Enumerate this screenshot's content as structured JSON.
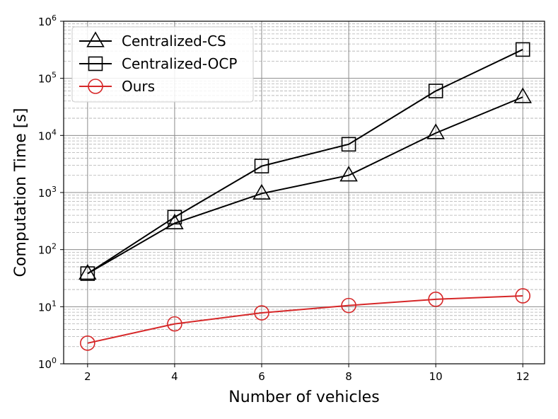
{
  "chart_data": {
    "type": "line",
    "title": "",
    "xlabel": "Number of vehicles",
    "ylabel": "Computation Time [s]",
    "x": [
      2,
      4,
      6,
      8,
      10,
      12
    ],
    "xticks": [
      "2",
      "4",
      "6",
      "8",
      "10",
      "12"
    ],
    "xlim": [
      1.45,
      12.5
    ],
    "yscale": "log",
    "ylim": [
      1,
      1000000
    ],
    "yticks": [
      {
        "base": "10",
        "exp": "0"
      },
      {
        "base": "10",
        "exp": "1"
      },
      {
        "base": "10",
        "exp": "2"
      },
      {
        "base": "10",
        "exp": "3"
      },
      {
        "base": "10",
        "exp": "4"
      },
      {
        "base": "10",
        "exp": "5"
      },
      {
        "base": "10",
        "exp": "6"
      }
    ],
    "grid": {
      "major": true,
      "minor": true
    },
    "legend_position": "top-left",
    "series": [
      {
        "name": "Centralized-CS",
        "marker": "triangle",
        "color": "#000000",
        "values": [
          38,
          290,
          960,
          2000,
          11000,
          47000
        ]
      },
      {
        "name": "Centralized-OCP",
        "marker": "square",
        "color": "#000000",
        "values": [
          38,
          370,
          2900,
          7000,
          60000,
          320000
        ]
      },
      {
        "name": "Ours",
        "marker": "circle",
        "color": "#d62728",
        "values": [
          2.3,
          5,
          7.8,
          10.5,
          13.5,
          15.5
        ]
      }
    ]
  }
}
